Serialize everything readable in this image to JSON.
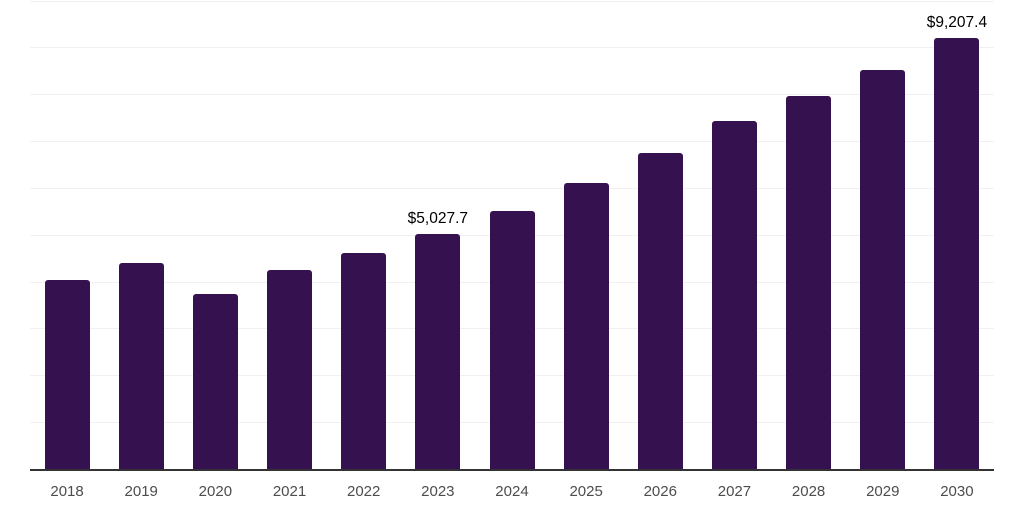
{
  "chart_data": {
    "type": "bar",
    "title": "",
    "xlabel": "",
    "ylabel": "",
    "categories": [
      "2018",
      "2019",
      "2020",
      "2021",
      "2022",
      "2023",
      "2024",
      "2025",
      "2026",
      "2027",
      "2028",
      "2029",
      "2030"
    ],
    "values": [
      4045,
      4410,
      3745,
      4265,
      4615,
      5027.7,
      5525,
      6110,
      6750,
      7440,
      7970,
      8525,
      9207.4
    ],
    "data_labels": [
      {
        "category": "2023",
        "text": "$5,027.7"
      },
      {
        "category": "2030",
        "text": "$9,207.4"
      }
    ],
    "ylim": [
      0,
      10000
    ],
    "gridline_interval": 1000,
    "grid": true,
    "legend": false,
    "y_tick_labels_visible": false,
    "colors": {
      "bar": "#351150",
      "axis_line": "#333333",
      "gridline": "#f0f0f3",
      "tick_label": "#4d4d4d",
      "data_label": "#000000",
      "background": "#ffffff"
    }
  }
}
